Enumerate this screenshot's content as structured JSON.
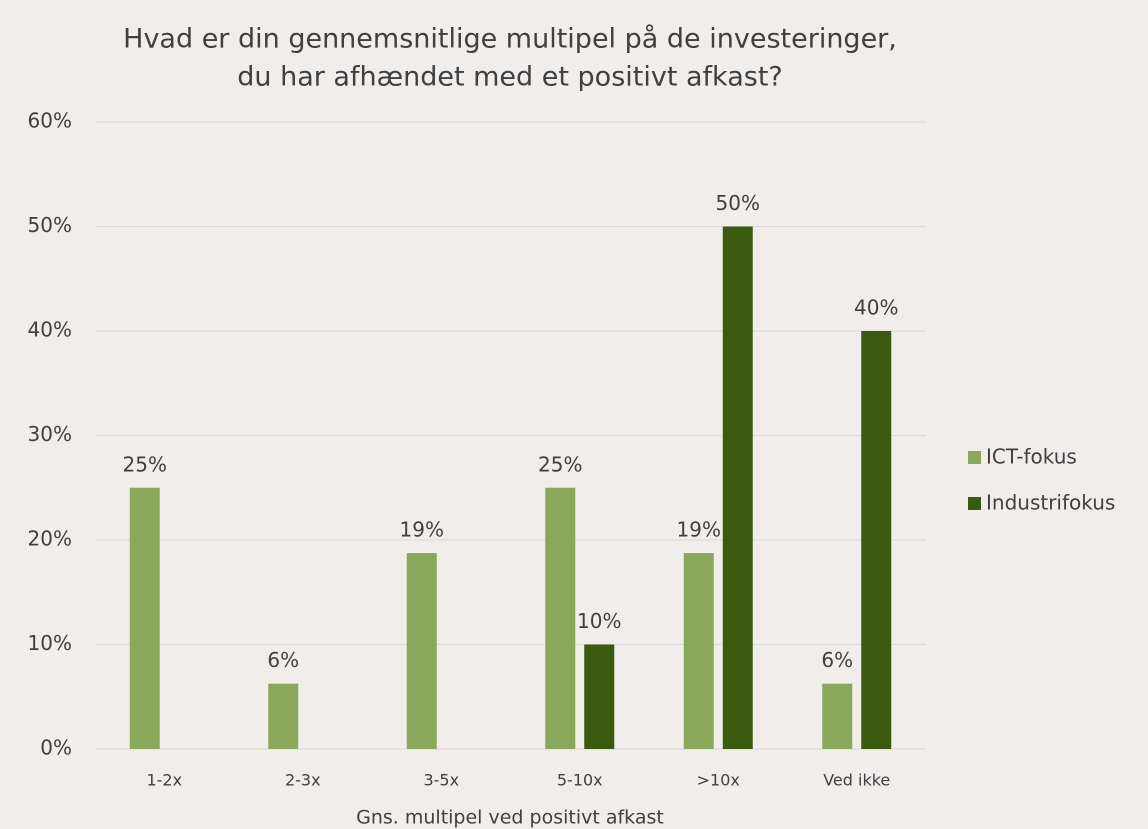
{
  "chart_data": {
    "type": "bar",
    "title": [
      "Hvad er din gennemsnitlige multipel på de investeringer,",
      "du har afhændet med et positivt afkast?"
    ],
    "x_label": "Gns. multipel ved positivt afkast",
    "categories": [
      "1-2x",
      "2-3x",
      "3-5x",
      "5-10x",
      ">10x",
      "Ved ikke"
    ],
    "series": [
      {
        "name": "ICT-fokus",
        "color": "#8aa85a",
        "values": [
          25,
          6.25,
          18.75,
          25,
          18.75,
          6.25
        ],
        "value_labels": [
          "25%",
          "6%",
          "19%",
          "25%",
          "19%",
          "6%"
        ]
      },
      {
        "name": "Industrifokus",
        "color": "#3a5a0f",
        "values": [
          null,
          null,
          null,
          10,
          50,
          40
        ],
        "value_labels": [
          null,
          null,
          null,
          "10%",
          "50%",
          "40%"
        ]
      }
    ],
    "ylim": [
      0,
      60
    ],
    "yticks": [
      {
        "value": 0,
        "label": "0%"
      },
      {
        "value": 10,
        "label": "10%"
      },
      {
        "value": 20,
        "label": "20%"
      },
      {
        "value": 30,
        "label": "30%"
      },
      {
        "value": 40,
        "label": "40%"
      },
      {
        "value": 50,
        "label": "50%"
      },
      {
        "value": 60,
        "label": "60%"
      }
    ],
    "grid": true,
    "legend": "right"
  }
}
